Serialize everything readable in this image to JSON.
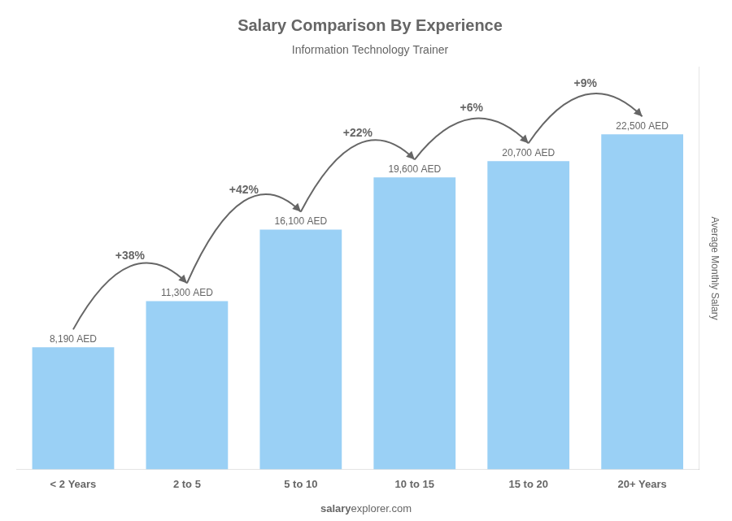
{
  "chart_data": {
    "type": "bar",
    "title": "Salary Comparison By Experience",
    "subtitle": "Information Technology Trainer",
    "ylabel": "Average Monthly Salary",
    "categories": [
      "< 2 Years",
      "2 to 5",
      "5 to 10",
      "10 to 15",
      "15 to 20",
      "20+ Years"
    ],
    "values": [
      8190,
      11300,
      16100,
      19600,
      20700,
      22500
    ],
    "value_labels": [
      "8,190 AED",
      "11,300 AED",
      "16,100 AED",
      "19,600 AED",
      "20,700 AED",
      "22,500 AED"
    ],
    "data_labels": true,
    "annotations": [
      "+38%",
      "+42%",
      "+22%",
      "+6%",
      "+9%"
    ],
    "footer": [
      "salary",
      "explorer.com"
    ],
    "ylim": [
      0,
      27000
    ],
    "grid": false,
    "tick_labels": "x"
  }
}
